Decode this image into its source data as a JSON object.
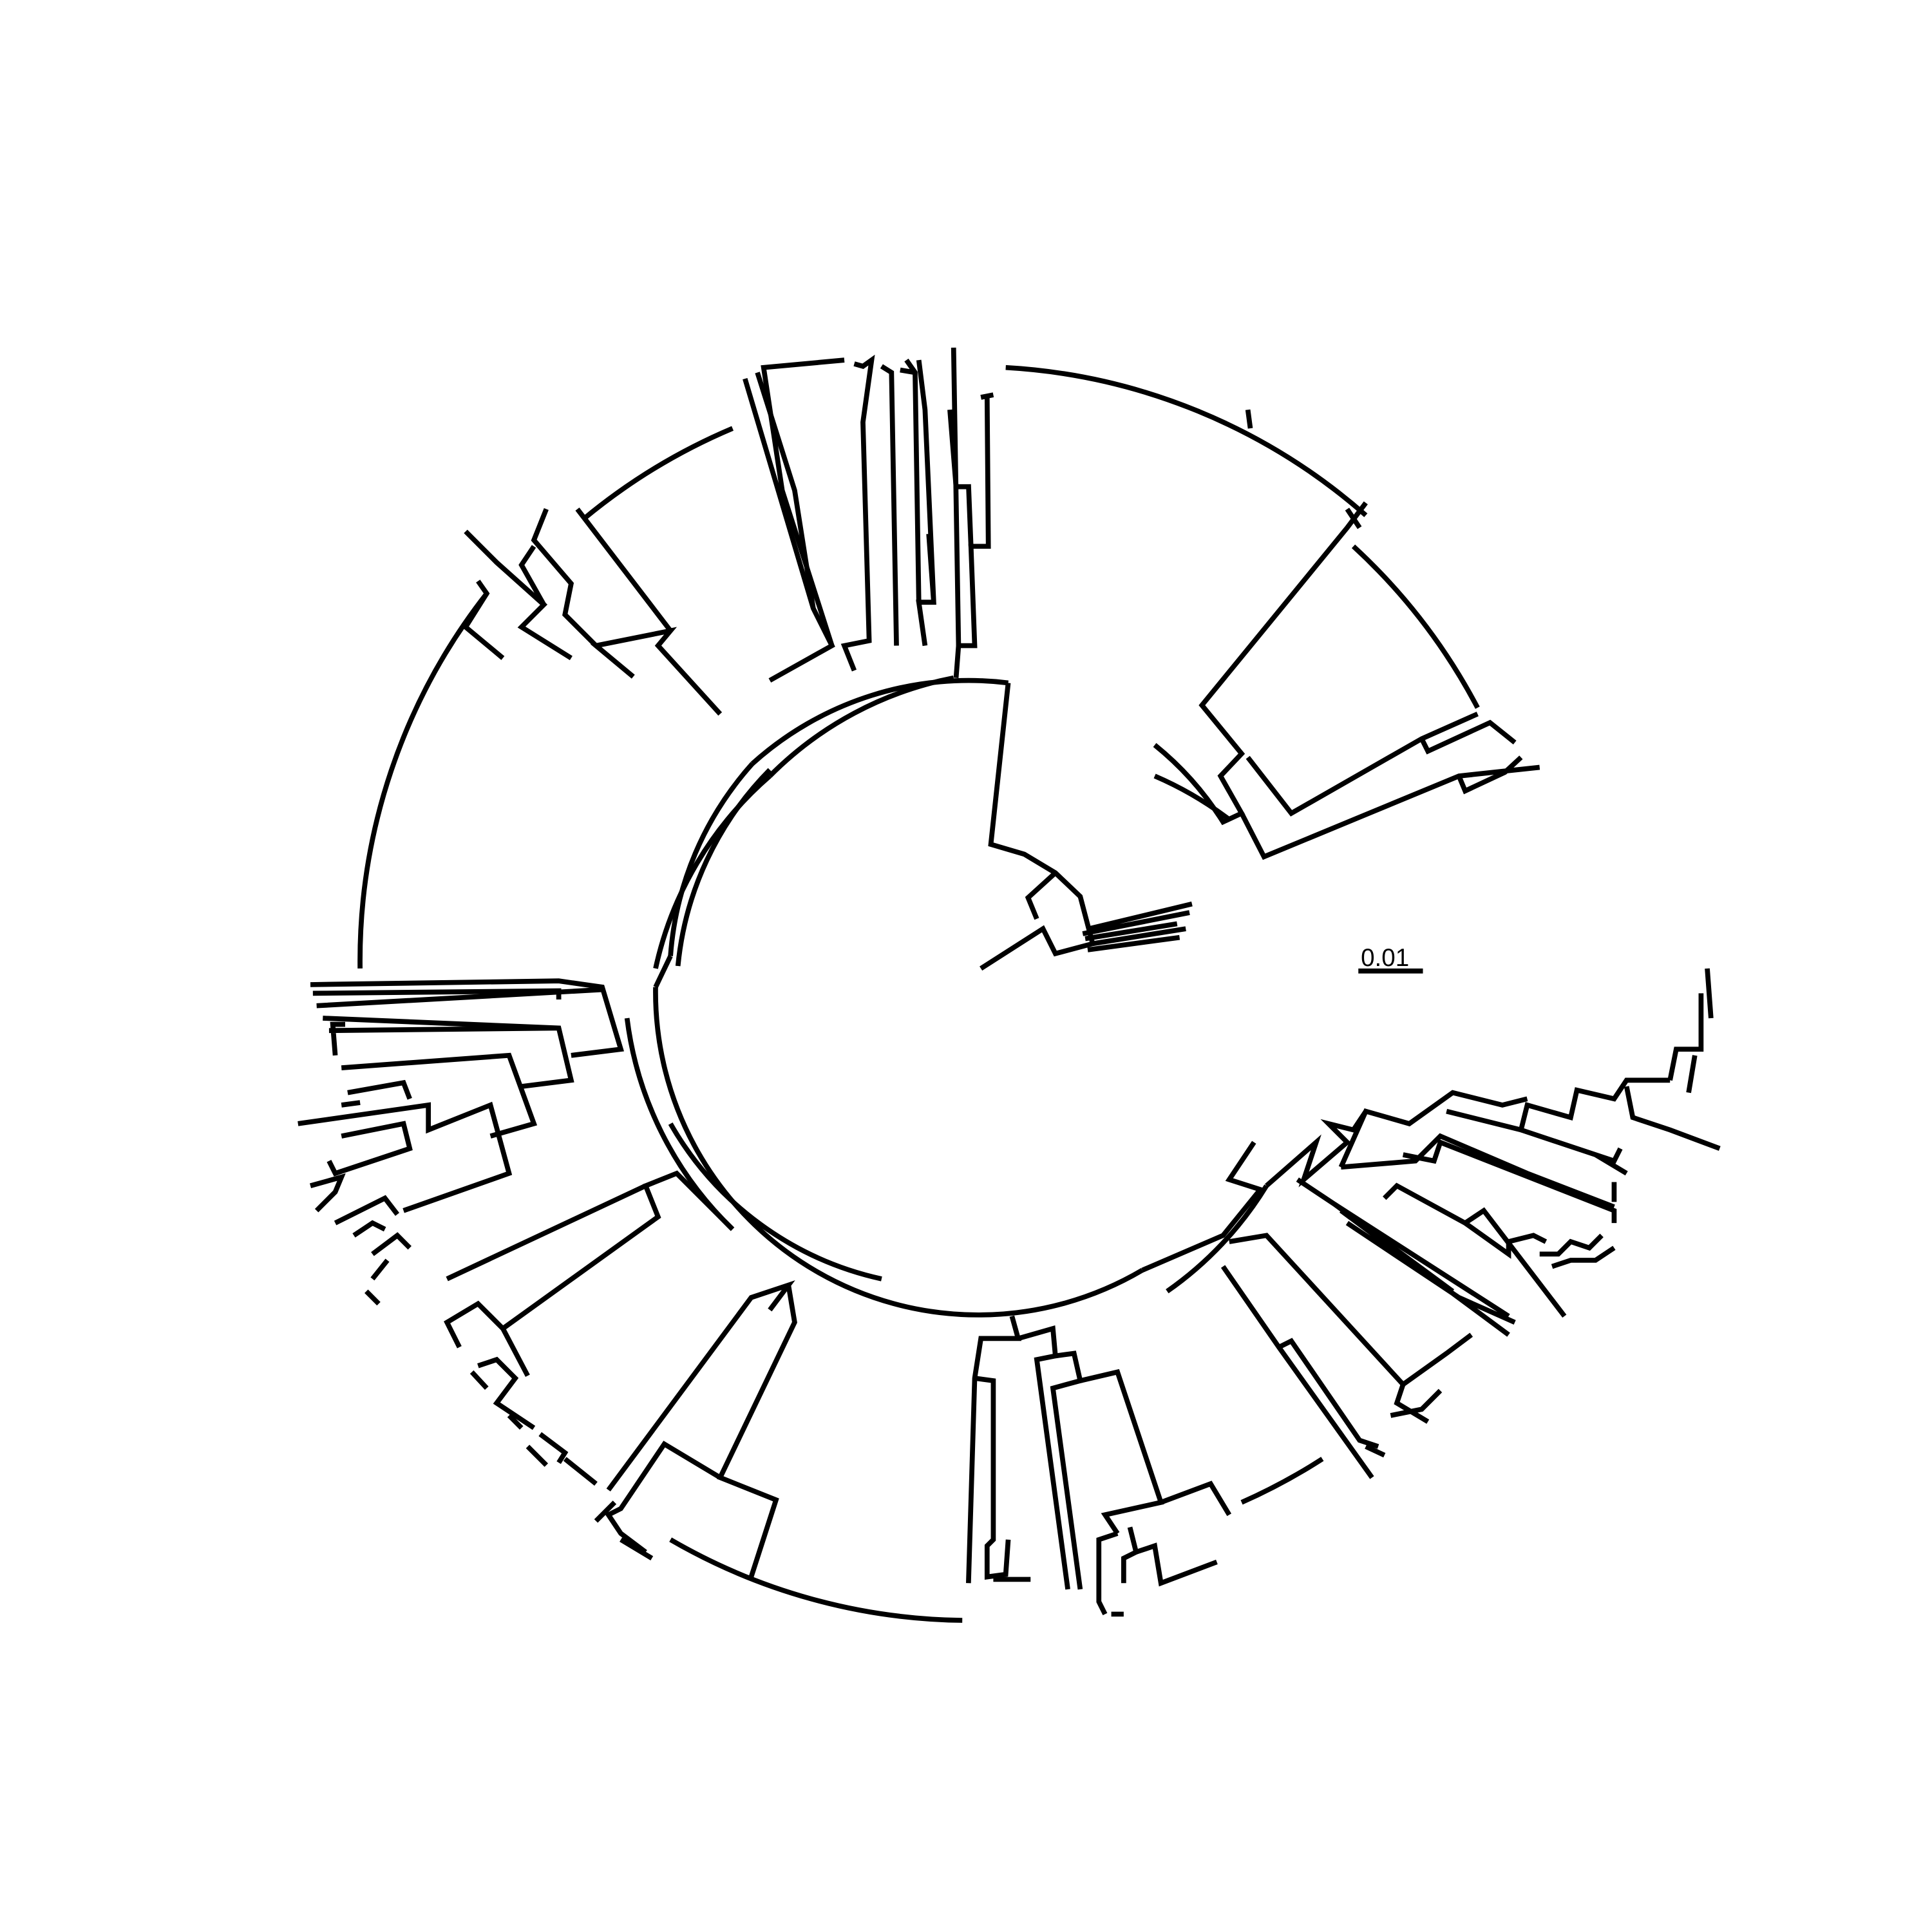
{
  "figure": {
    "type": "circular-phylogenetic-tree",
    "line_color": "#000000",
    "background": "#ffffff",
    "tip_labels_shown": false
  },
  "scale_bar": {
    "label": "0.01",
    "value": 0.01
  }
}
